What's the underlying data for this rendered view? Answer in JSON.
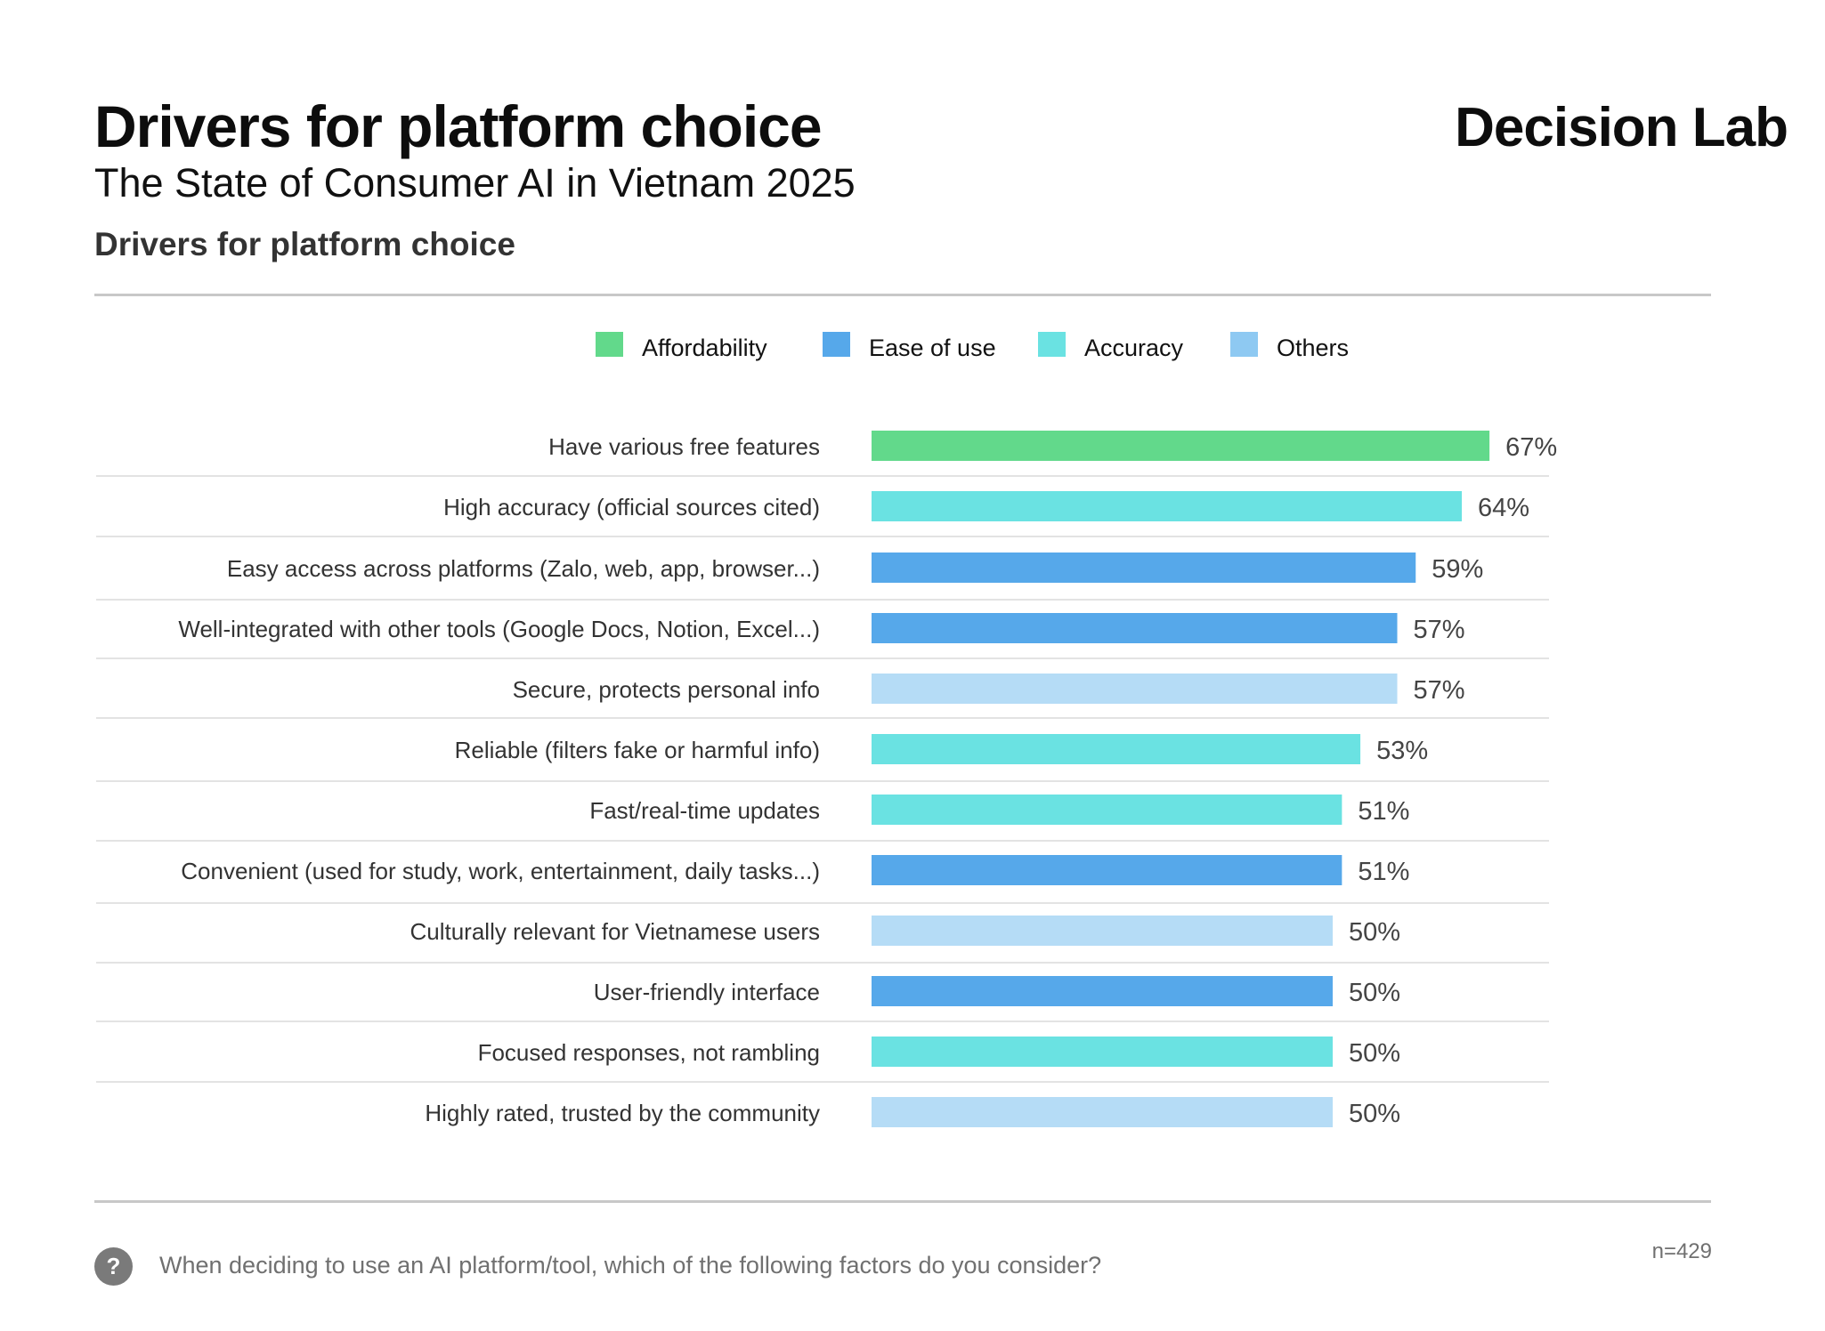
{
  "header": {
    "title": "Drivers for platform choice",
    "subtitle": "The State of Consumer AI in Vietnam 2025",
    "brand": "Decision Lab",
    "section_title": "Drivers for platform choice"
  },
  "footer": {
    "icon": "question-icon",
    "icon_glyph": "?",
    "question": "When deciding to use an AI platform/tool, which of the following factors do you consider?",
    "sample_size": "n=429"
  },
  "colors": {
    "Affordability": "#62d98b",
    "Ease of use": "#56a8ea",
    "Accuracy": "#6ae2e2",
    "Others": "#8ec9f2",
    "Others_bar": "#b5dcf6"
  },
  "chart_data": {
    "type": "bar",
    "orientation": "horizontal",
    "title": "Drivers for platform choice",
    "legend": [
      "Affordability",
      "Ease of use",
      "Accuracy",
      "Others"
    ],
    "legend_position": "top",
    "xlim": [
      0,
      100
    ],
    "grid": false,
    "value_suffix": "%",
    "categories": [
      "Have various free features",
      "High accuracy (official sources cited)",
      "Easy access across platforms (Zalo, web, app, browser...)",
      "Well-integrated with other tools (Google Docs, Notion, Excel...)",
      "Secure, protects personal info",
      "Reliable (filters fake or harmful info)",
      "Fast/real-time updates",
      "Convenient (used for study, work, entertainment, daily tasks...)",
      "Culturally relevant for Vietnamese users",
      "User-friendly interface",
      "Focused responses, not rambling",
      "Highly rated, trusted by the community"
    ],
    "values": [
      67,
      64,
      59,
      57,
      57,
      53,
      51,
      51,
      50,
      50,
      50,
      50
    ],
    "groups": [
      "Affordability",
      "Accuracy",
      "Ease of use",
      "Ease of use",
      "Others",
      "Accuracy",
      "Accuracy",
      "Ease of use",
      "Others",
      "Ease of use",
      "Accuracy",
      "Others"
    ]
  }
}
